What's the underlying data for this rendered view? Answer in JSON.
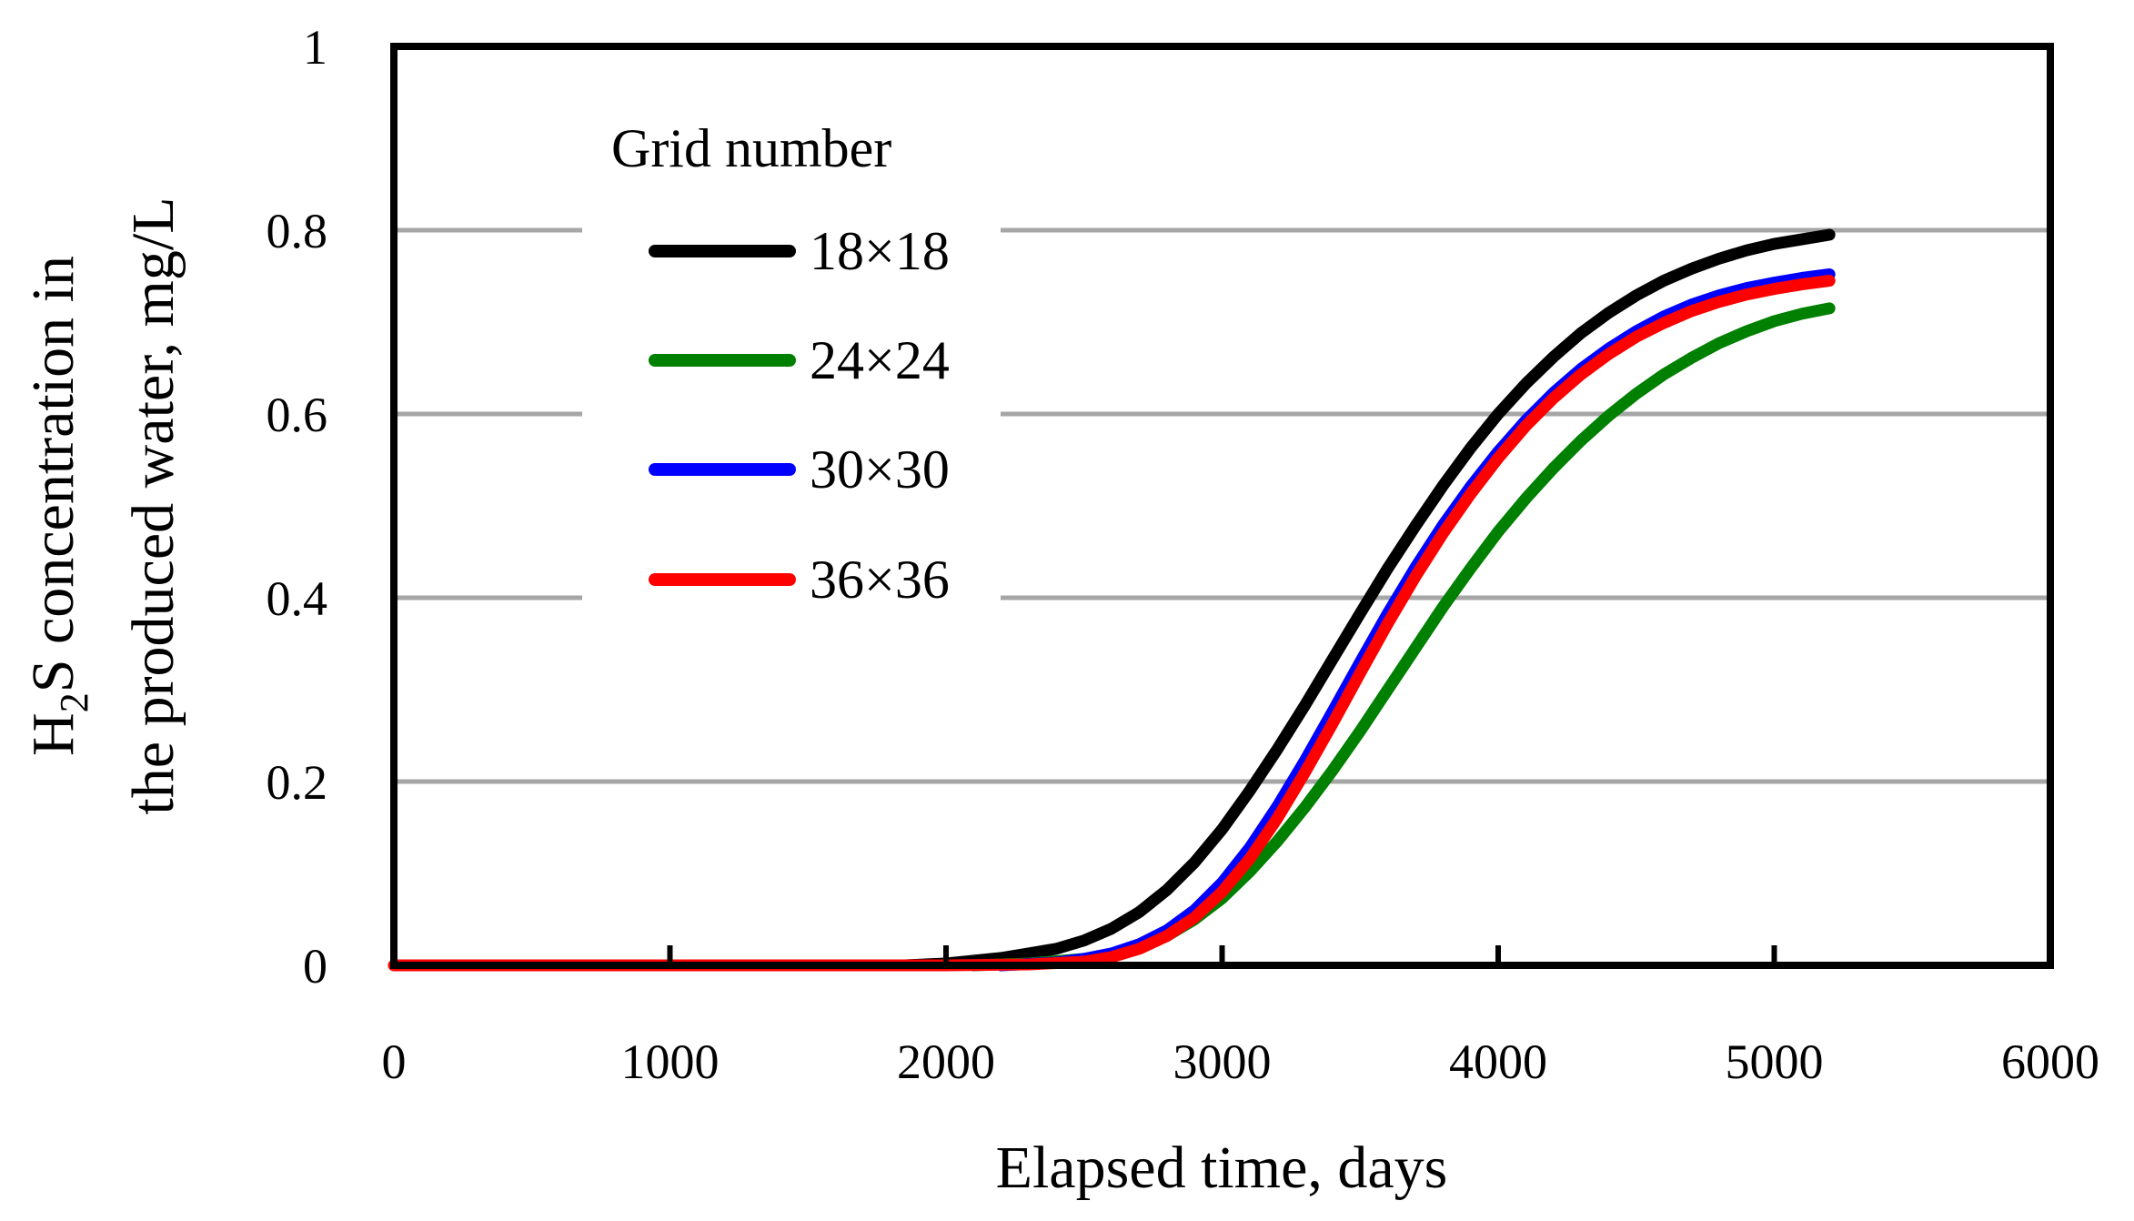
{
  "chart_data": {
    "type": "line",
    "title": "",
    "xlabel": "Elapsed time, days",
    "ylabel_line1_prefix": "H",
    "ylabel_line1_subscript": "2",
    "ylabel_line1_suffix": "S concentration in",
    "ylabel_line2": "the produced water, mg/L",
    "xlim": [
      0,
      6000
    ],
    "ylim": [
      0,
      1
    ],
    "xticks": [
      0,
      1000,
      2000,
      3000,
      4000,
      5000,
      6000
    ],
    "xtick_labels": [
      "0",
      "1000",
      "2000",
      "3000",
      "4000",
      "5000",
      "6000"
    ],
    "yticks": [
      0,
      0.2,
      0.4,
      0.6,
      0.8,
      1
    ],
    "ytick_labels": [
      "0",
      "0.2",
      "0.4",
      "0.6",
      "0.8",
      "1"
    ],
    "grid": "horizontal",
    "legend": {
      "title": "Grid number",
      "placement": "top-left"
    },
    "series": [
      {
        "name": "18×18",
        "color": "#000000",
        "x": [
          1850,
          2000,
          2200,
          2400,
          2500,
          2600,
          2700,
          2800,
          2900,
          3000,
          3100,
          3200,
          3300,
          3400,
          3500,
          3600,
          3700,
          3800,
          3900,
          4000,
          4100,
          4200,
          4300,
          4400,
          4500,
          4600,
          4700,
          4800,
          4900,
          5000,
          5100,
          5200
        ],
        "values": [
          0,
          0.002,
          0.008,
          0.018,
          0.027,
          0.04,
          0.058,
          0.082,
          0.112,
          0.148,
          0.19,
          0.235,
          0.283,
          0.333,
          0.383,
          0.432,
          0.478,
          0.522,
          0.563,
          0.6,
          0.633,
          0.662,
          0.688,
          0.71,
          0.729,
          0.745,
          0.758,
          0.769,
          0.778,
          0.785,
          0.79,
          0.795
        ]
      },
      {
        "name": "24×24",
        "color": "#008000",
        "x": [
          2100,
          2300,
          2500,
          2600,
          2700,
          2800,
          2900,
          3000,
          3100,
          3200,
          3300,
          3400,
          3500,
          3600,
          3700,
          3800,
          3900,
          4000,
          4100,
          4200,
          4300,
          4400,
          4500,
          4600,
          4700,
          4800,
          4900,
          5000,
          5100,
          5200
        ],
        "values": [
          0,
          0.002,
          0.007,
          0.012,
          0.02,
          0.032,
          0.05,
          0.073,
          0.102,
          0.135,
          0.172,
          0.212,
          0.255,
          0.3,
          0.345,
          0.39,
          0.432,
          0.472,
          0.508,
          0.541,
          0.571,
          0.598,
          0.622,
          0.643,
          0.661,
          0.677,
          0.69,
          0.701,
          0.709,
          0.715
        ]
      },
      {
        "name": "30×30",
        "color": "#0000ff",
        "x": [
          2200,
          2400,
          2500,
          2600,
          2700,
          2800,
          2900,
          3000,
          3100,
          3200,
          3300,
          3400,
          3500,
          3600,
          3700,
          3800,
          3900,
          4000,
          4100,
          4200,
          4300,
          4400,
          4500,
          4600,
          4700,
          4800,
          4900,
          5000,
          5100,
          5200
        ],
        "values": [
          0,
          0.003,
          0.007,
          0.013,
          0.023,
          0.038,
          0.06,
          0.09,
          0.128,
          0.173,
          0.223,
          0.276,
          0.33,
          0.383,
          0.433,
          0.479,
          0.521,
          0.559,
          0.593,
          0.623,
          0.649,
          0.671,
          0.69,
          0.706,
          0.719,
          0.729,
          0.737,
          0.743,
          0.748,
          0.752
        ]
      },
      {
        "name": "36×36",
        "color": "#ff0000",
        "x": [
          0,
          1000,
          2000,
          2300,
          2500,
          2600,
          2700,
          2800,
          2900,
          3000,
          3100,
          3200,
          3300,
          3400,
          3500,
          3600,
          3700,
          3800,
          3900,
          4000,
          4100,
          4200,
          4300,
          4400,
          4500,
          4600,
          4700,
          4800,
          4900,
          5000,
          5100,
          5200
        ],
        "values": [
          0,
          0,
          0,
          0.001,
          0.004,
          0.009,
          0.018,
          0.032,
          0.052,
          0.08,
          0.116,
          0.16,
          0.21,
          0.263,
          0.318,
          0.372,
          0.423,
          0.47,
          0.513,
          0.552,
          0.587,
          0.617,
          0.643,
          0.665,
          0.684,
          0.699,
          0.712,
          0.722,
          0.73,
          0.736,
          0.741,
          0.745
        ]
      }
    ]
  }
}
